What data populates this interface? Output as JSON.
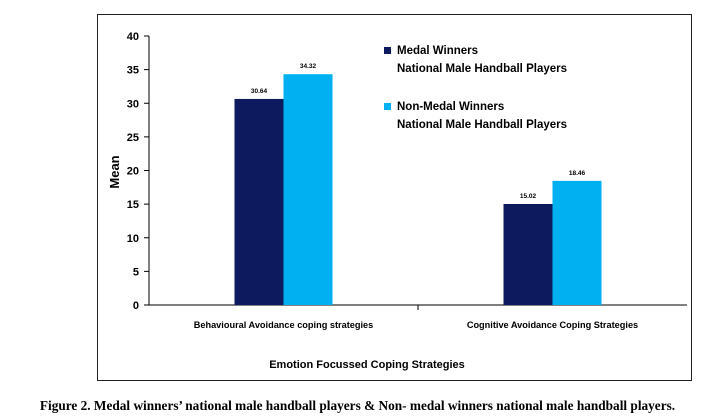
{
  "caption": "Figure 2. Medal winners’ national male handball players & Non- medal winners national male handball players.",
  "chart_data": {
    "type": "bar",
    "categories": [
      "Behavioural Avoidance coping strategies",
      "Cognitive Avoidance Coping Strategies"
    ],
    "series": [
      {
        "name_line1": "Medal Winners",
        "name_line2": "National Male Handball Players",
        "color": "#0d1b5e",
        "values": [
          30.64,
          15.02
        ],
        "labels": [
          "30.64",
          "15.02"
        ]
      },
      {
        "name_line1": "Non-Medal Winners",
        "name_line2": "National Male Handball Players",
        "color": "#00b0f0",
        "values": [
          34.32,
          18.46
        ],
        "labels": [
          "34.32",
          "18.46"
        ]
      }
    ],
    "ylabel": "Mean",
    "xlabel": "Emotion Focussed Coping Strategies",
    "ylim": [
      0,
      40
    ],
    "yticks": [
      "0",
      "5",
      "10",
      "15",
      "20",
      "25",
      "30",
      "35",
      "40"
    ],
    "legend_position": "right",
    "grid": false
  }
}
